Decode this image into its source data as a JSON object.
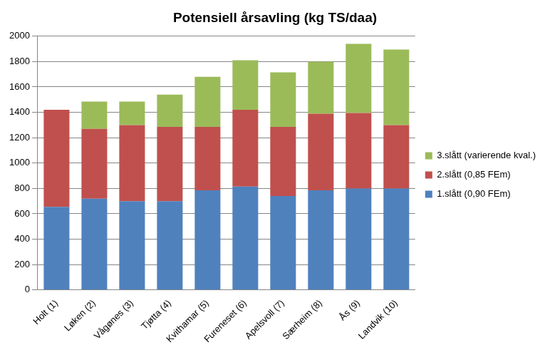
{
  "chart_data": {
    "type": "bar",
    "title": "Potensiell årsavling (kg TS/daa)",
    "categories": [
      "Holt (1)",
      "Løken (2)",
      "Vågønes (3)",
      "Tjøtta (4)",
      "Kvithamar (5)",
      "Fureneset (6)",
      "Apelsvoll (7)",
      "Særheim (8)",
      "Ås (9)",
      "Landvik (10)"
    ],
    "series": [
      {
        "name": "1.slått (0,90 FEm)",
        "color": "#4f81bd",
        "values": [
          655,
          720,
          700,
          700,
          785,
          815,
          740,
          785,
          800,
          800
        ]
      },
      {
        "name": "2.slått (0,85 FEm)",
        "color": "#c0504d",
        "values": [
          765,
          550,
          600,
          585,
          500,
          605,
          545,
          605,
          595,
          500
        ]
      },
      {
        "name": "3.slått (varierende kval.)",
        "color": "#9bbb59",
        "values": [
          0,
          215,
          185,
          255,
          395,
          390,
          430,
          410,
          545,
          595
        ]
      }
    ],
    "stacked": true,
    "ylim": [
      0,
      2000
    ],
    "yticks": [
      0,
      200,
      400,
      600,
      800,
      1000,
      1200,
      1400,
      1600,
      1800,
      2000
    ],
    "grid": true,
    "legend": "right"
  }
}
